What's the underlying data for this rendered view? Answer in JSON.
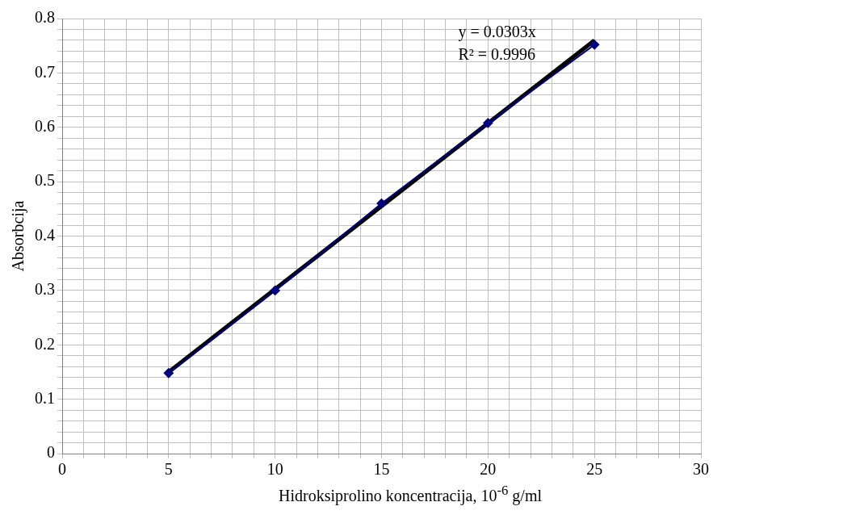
{
  "chart_data": {
    "type": "line",
    "xlabel": "Hidroksiprolino koncentracija, 10$^{-6}$ g/ml",
    "ylabel": "Absorbcija",
    "series": [
      {
        "type": "line",
        "color": "#000080",
        "marker": "diamond",
        "x": [
          5,
          10,
          15,
          20,
          25
        ],
        "values": [
          0.148,
          0.3,
          0.46,
          0.608,
          0.752
        ]
      },
      {
        "type": "line",
        "color": "#000000",
        "marker": "none",
        "x": [
          5,
          25
        ],
        "values": [
          0.15,
          0.76
        ]
      }
    ],
    "annotations": [
      "y = 0.0303x",
      "R² = 0.9996"
    ],
    "xlim": [
      0,
      30
    ],
    "ylim": [
      0,
      0.8
    ],
    "xticks": [
      0,
      {
        "value": 1,
        "label": null
      },
      {
        "value": 2,
        "label": null
      },
      {
        "value": 3,
        "label": null
      },
      {
        "value": 4,
        "label": null
      },
      5,
      {
        "value": 6,
        "label": null
      },
      {
        "value": 7,
        "label": null
      },
      {
        "value": 8,
        "label": null
      },
      {
        "value": 9,
        "label": null
      },
      10,
      {
        "value": 11,
        "label": null
      },
      {
        "value": 12,
        "label": null
      },
      {
        "value": 13,
        "label": null
      },
      {
        "value": 14,
        "label": null
      },
      15,
      {
        "value": 16,
        "label": null
      },
      {
        "value": 17,
        "label": null
      },
      {
        "value": 18,
        "label": null
      },
      {
        "value": 19,
        "label": null
      },
      20,
      {
        "value": 21,
        "label": null
      },
      {
        "value": 22,
        "label": null
      },
      {
        "value": 23,
        "label": null
      },
      {
        "value": 24,
        "label": null
      },
      25,
      {
        "value": 26,
        "label": null
      },
      {
        "value": 27,
        "label": null
      },
      {
        "value": 28,
        "label": null
      },
      {
        "value": 29,
        "label": null
      },
      30
    ],
    "yticks": [
      0,
      {
        "value": 0.02,
        "label": null
      },
      {
        "value": 0.04,
        "label": null
      },
      {
        "value": 0.06,
        "label": null
      },
      {
        "value": 0.08,
        "label": null
      },
      0.1,
      {
        "value": 0.12,
        "label": null
      },
      {
        "value": 0.14,
        "label": null
      },
      {
        "value": 0.16,
        "label": null
      },
      {
        "value": 0.18,
        "label": null
      },
      0.2,
      {
        "value": 0.22,
        "label": null
      },
      {
        "value": 0.24,
        "label": null
      },
      {
        "value": 0.26,
        "label": null
      },
      {
        "value": 0.28,
        "label": null
      },
      0.3,
      {
        "value": 0.32,
        "label": null
      },
      {
        "value": 0.34,
        "label": null
      },
      {
        "value": 0.36,
        "label": null
      },
      {
        "value": 0.38,
        "label": null
      },
      0.4,
      {
        "value": 0.42,
        "label": null
      },
      {
        "value": 0.44,
        "label": null
      },
      {
        "value": 0.46,
        "label": null
      },
      {
        "value": 0.48,
        "label": null
      },
      0.5,
      {
        "value": 0.52,
        "label": null
      },
      {
        "value": 0.54,
        "label": null
      },
      {
        "value": 0.56,
        "label": null
      },
      {
        "value": 0.58,
        "label": null
      },
      0.6,
      {
        "value": 0.62,
        "label": null
      },
      {
        "value": 0.64,
        "label": null
      },
      {
        "value": 0.66,
        "label": null
      },
      {
        "value": 0.68,
        "label": null
      },
      0.7,
      {
        "value": 0.72,
        "label": null
      },
      {
        "value": 0.74,
        "label": null
      },
      {
        "value": 0.76,
        "label": null
      },
      {
        "value": 0.78,
        "label": null
      },
      0.8
    ],
    "grid": true
  }
}
